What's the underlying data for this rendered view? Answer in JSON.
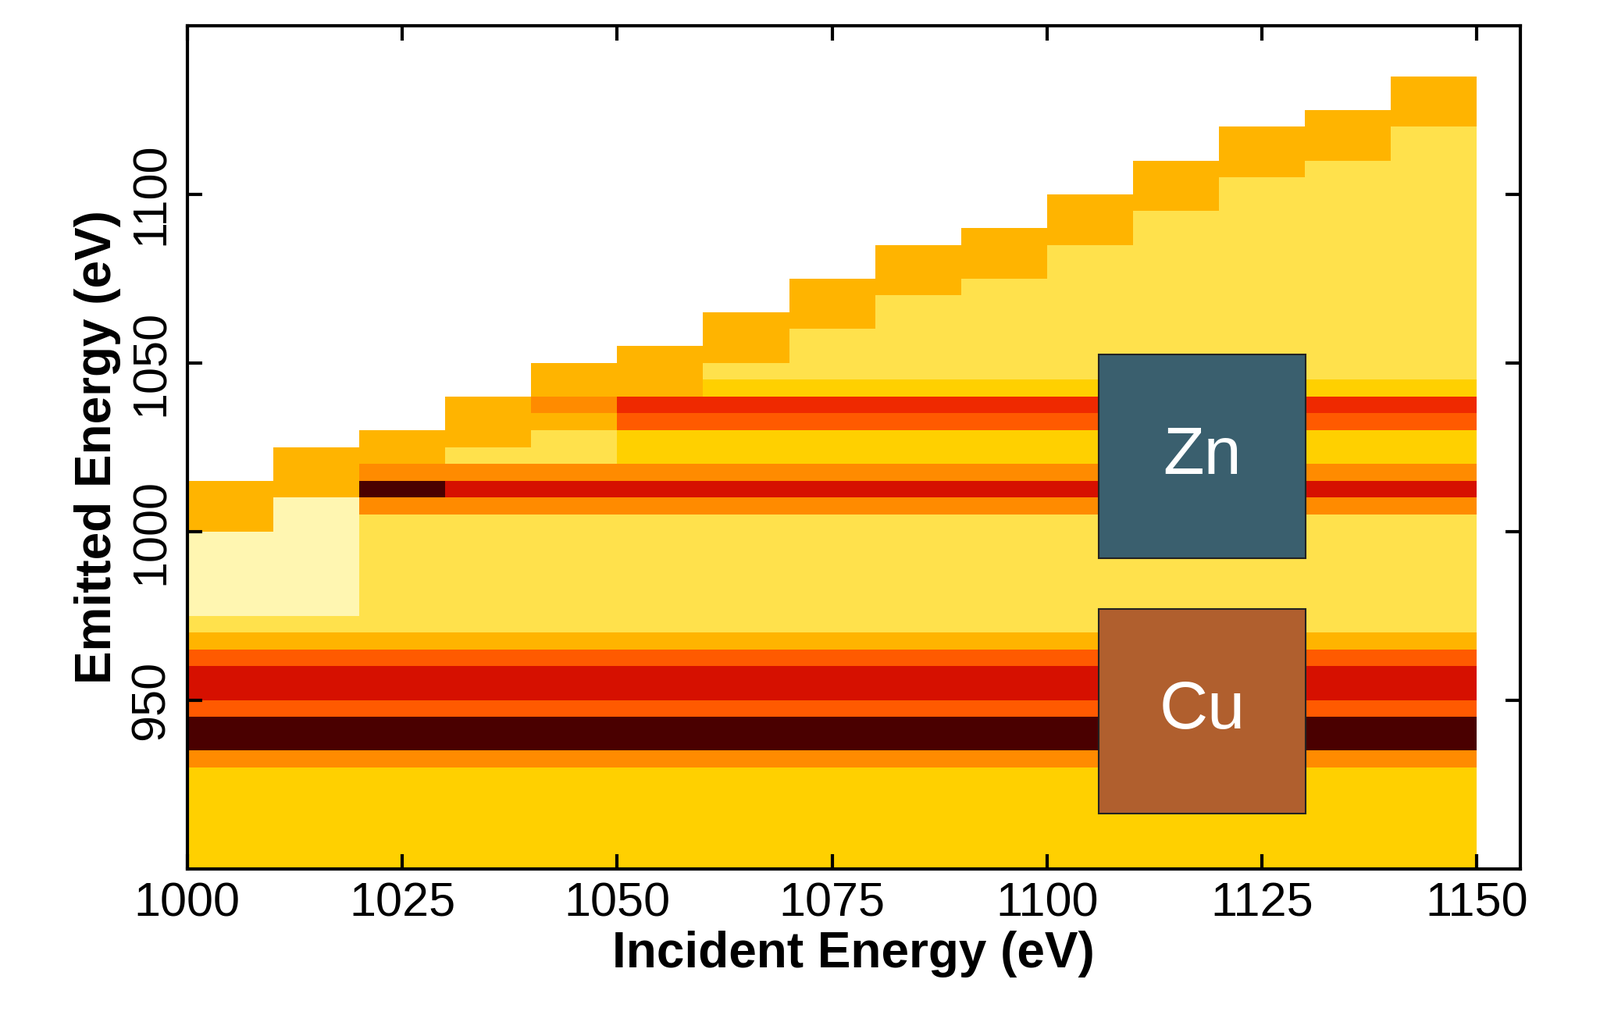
{
  "chart_data": {
    "type": "heatmap",
    "x_label": "Incident Energy (eV)",
    "y_label": "Emitted Energy (eV)",
    "xlim": [
      1000,
      1155
    ],
    "ylim": [
      900,
      1150
    ],
    "xticks": [
      1000,
      1025,
      1050,
      1075,
      1100,
      1125,
      1150
    ],
    "yticks": [
      950,
      1000,
      1050,
      1100
    ],
    "colors": [
      "#ffffff",
      "#fff6b0",
      "#ffe04a",
      "#ffd000",
      "#ffb400",
      "#ff8c00",
      "#ff5a00",
      "#f02a00",
      "#d81000",
      "#4a0000"
    ],
    "clim": [
      0,
      9
    ],
    "x_edges": [
      1000,
      1010,
      1020,
      1030,
      1040,
      1050,
      1060,
      1070,
      1080,
      1090,
      1100,
      1110,
      1120,
      1130,
      1140,
      1150
    ],
    "y_edges": [
      900,
      905,
      910,
      915,
      920,
      925,
      930,
      935,
      940,
      945,
      950,
      955,
      960,
      965,
      970,
      975,
      980,
      985,
      990,
      995,
      1000,
      1005,
      1010,
      1015,
      1020,
      1025,
      1030,
      1035,
      1040,
      1045,
      1050,
      1055,
      1060,
      1065,
      1070,
      1075,
      1080,
      1085,
      1090,
      1095,
      1100,
      1105,
      1110,
      1115,
      1120,
      1125,
      1130,
      1135,
      1140,
      1145,
      1150
    ],
    "cells": [
      [
        3,
        3,
        3,
        3,
        3,
        3,
        3,
        3,
        3,
        3,
        3,
        3,
        3,
        3,
        3
      ],
      [
        3,
        3,
        3,
        3,
        3,
        3,
        3,
        3,
        3,
        3,
        3,
        3,
        3,
        3,
        3
      ],
      [
        3,
        3,
        3,
        3,
        3,
        3,
        3,
        3,
        3,
        3,
        3,
        3,
        3,
        3,
        3
      ],
      [
        3,
        3,
        3,
        3,
        3,
        3,
        3,
        3,
        3,
        3,
        3,
        3,
        3,
        3,
        3
      ],
      [
        3,
        3,
        3,
        3,
        3,
        3,
        3,
        3,
        3,
        3,
        3,
        3,
        3,
        3,
        3
      ],
      [
        3,
        3,
        3,
        3,
        3,
        3,
        3,
        3,
        3,
        3,
        3,
        3,
        3,
        3,
        3
      ],
      [
        5,
        5,
        5,
        5,
        5,
        5,
        5,
        5,
        5,
        5,
        5,
        5,
        5,
        5,
        5
      ],
      [
        9,
        9,
        9,
        9,
        9,
        9,
        9,
        9,
        9,
        9,
        9,
        9,
        9,
        9,
        9
      ],
      [
        9,
        9,
        9,
        9,
        9,
        9,
        9,
        9,
        9,
        9,
        9,
        9,
        9,
        9,
        9
      ],
      [
        6,
        6,
        6,
        6,
        6,
        6,
        6,
        6,
        6,
        6,
        6,
        6,
        6,
        6,
        6
      ],
      [
        8,
        8,
        8,
        8,
        8,
        8,
        8,
        8,
        8,
        8,
        8,
        8,
        8,
        8,
        8
      ],
      [
        8,
        8,
        8,
        8,
        8,
        8,
        8,
        8,
        8,
        8,
        8,
        8,
        8,
        8,
        8
      ],
      [
        6,
        6,
        6,
        6,
        6,
        6,
        6,
        6,
        6,
        6,
        6,
        6,
        6,
        6,
        6
      ],
      [
        4,
        4,
        4,
        4,
        4,
        4,
        4,
        4,
        4,
        4,
        4,
        4,
        4,
        4,
        4
      ],
      [
        2,
        2,
        2,
        2,
        2,
        2,
        2,
        2,
        2,
        2,
        2,
        2,
        2,
        2,
        2
      ],
      [
        1,
        1,
        2,
        2,
        2,
        2,
        2,
        2,
        2,
        2,
        2,
        2,
        2,
        2,
        2
      ],
      [
        1,
        1,
        2,
        2,
        2,
        2,
        2,
        2,
        2,
        2,
        2,
        2,
        2,
        2,
        2
      ],
      [
        1,
        1,
        2,
        2,
        2,
        2,
        2,
        2,
        2,
        2,
        2,
        2,
        2,
        2,
        2
      ],
      [
        1,
        1,
        2,
        2,
        2,
        2,
        2,
        2,
        2,
        2,
        2,
        2,
        2,
        2,
        2
      ],
      [
        1,
        1,
        2,
        2,
        2,
        2,
        2,
        2,
        2,
        2,
        2,
        2,
        2,
        2,
        2
      ],
      [
        4,
        1,
        2,
        2,
        2,
        2,
        2,
        2,
        2,
        2,
        2,
        2,
        2,
        2,
        2
      ],
      [
        4,
        1,
        5,
        5,
        5,
        5,
        5,
        5,
        5,
        5,
        5,
        5,
        5,
        5,
        5
      ],
      [
        4,
        4,
        9,
        8,
        8,
        8,
        8,
        8,
        8,
        8,
        8,
        8,
        8,
        8,
        8
      ],
      [
        0,
        4,
        5,
        5,
        5,
        5,
        5,
        5,
        5,
        5,
        5,
        5,
        5,
        5,
        5
      ],
      [
        0,
        4,
        4,
        2,
        2,
        3,
        3,
        3,
        3,
        3,
        3,
        3,
        3,
        3,
        3
      ],
      [
        0,
        0,
        4,
        4,
        2,
        3,
        3,
        3,
        3,
        3,
        3,
        3,
        3,
        3,
        3
      ],
      [
        0,
        0,
        0,
        4,
        4,
        6,
        6,
        6,
        6,
        6,
        6,
        6,
        6,
        6,
        6
      ],
      [
        0,
        0,
        0,
        4,
        5,
        7,
        7,
        7,
        7,
        7,
        7,
        7,
        7,
        7,
        7
      ],
      [
        0,
        0,
        0,
        0,
        4,
        4,
        3,
        3,
        3,
        3,
        3,
        3,
        3,
        3,
        3
      ],
      [
        0,
        0,
        0,
        0,
        4,
        4,
        2,
        2,
        2,
        2,
        2,
        2,
        2,
        2,
        2
      ],
      [
        0,
        0,
        0,
        0,
        0,
        4,
        4,
        2,
        2,
        2,
        2,
        2,
        2,
        2,
        2
      ],
      [
        0,
        0,
        0,
        0,
        0,
        0,
        4,
        2,
        2,
        2,
        2,
        2,
        2,
        2,
        2
      ],
      [
        0,
        0,
        0,
        0,
        0,
        0,
        4,
        4,
        2,
        2,
        2,
        2,
        2,
        2,
        2
      ],
      [
        0,
        0,
        0,
        0,
        0,
        0,
        0,
        4,
        2,
        2,
        2,
        2,
        2,
        2,
        2
      ],
      [
        0,
        0,
        0,
        0,
        0,
        0,
        0,
        4,
        4,
        2,
        2,
        2,
        2,
        2,
        2
      ],
      [
        0,
        0,
        0,
        0,
        0,
        0,
        0,
        0,
        4,
        4,
        2,
        2,
        2,
        2,
        2
      ],
      [
        0,
        0,
        0,
        0,
        0,
        0,
        0,
        0,
        4,
        4,
        2,
        2,
        2,
        2,
        2
      ],
      [
        0,
        0,
        0,
        0,
        0,
        0,
        0,
        0,
        0,
        4,
        4,
        2,
        2,
        2,
        2
      ],
      [
        0,
        0,
        0,
        0,
        0,
        0,
        0,
        0,
        0,
        0,
        4,
        2,
        2,
        2,
        2
      ],
      [
        0,
        0,
        0,
        0,
        0,
        0,
        0,
        0,
        0,
        0,
        4,
        4,
        2,
        2,
        2
      ],
      [
        0,
        0,
        0,
        0,
        0,
        0,
        0,
        0,
        0,
        0,
        0,
        4,
        2,
        2,
        2
      ],
      [
        0,
        0,
        0,
        0,
        0,
        0,
        0,
        0,
        0,
        0,
        0,
        4,
        4,
        2,
        2
      ],
      [
        0,
        0,
        0,
        0,
        0,
        0,
        0,
        0,
        0,
        0,
        0,
        0,
        4,
        4,
        2
      ],
      [
        0,
        0,
        0,
        0,
        0,
        0,
        0,
        0,
        0,
        0,
        0,
        0,
        4,
        4,
        2
      ],
      [
        0,
        0,
        0,
        0,
        0,
        0,
        0,
        0,
        0,
        0,
        0,
        0,
        0,
        4,
        4
      ],
      [
        0,
        0,
        0,
        0,
        0,
        0,
        0,
        0,
        0,
        0,
        0,
        0,
        0,
        0,
        4
      ],
      [
        0,
        0,
        0,
        0,
        0,
        0,
        0,
        0,
        0,
        0,
        0,
        0,
        0,
        0,
        4
      ],
      [
        0,
        0,
        0,
        0,
        0,
        0,
        0,
        0,
        0,
        0,
        0,
        0,
        0,
        0,
        0
      ],
      [
        0,
        0,
        0,
        0,
        0,
        0,
        0,
        0,
        0,
        0,
        0,
        0,
        0,
        0,
        0
      ],
      [
        0,
        0,
        0,
        0,
        0,
        0,
        0,
        0,
        0,
        0,
        0,
        0,
        0,
        0,
        0
      ]
    ],
    "annotations": [
      {
        "text": "Zn",
        "color": "#3a5f6e"
      },
      {
        "text": "Cu",
        "color": "#b05f2e"
      }
    ]
  }
}
